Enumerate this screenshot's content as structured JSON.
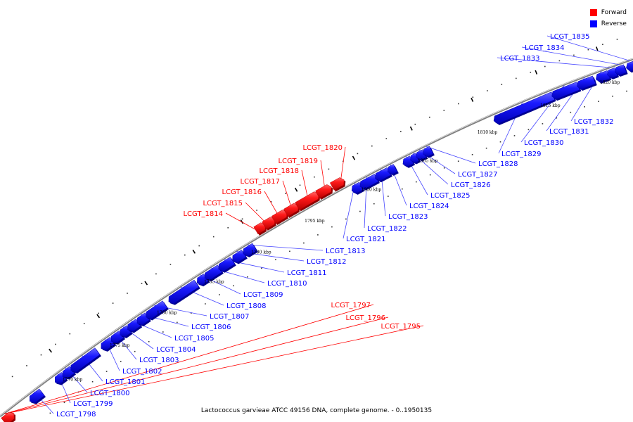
{
  "legend": {
    "forward_label": "Forward",
    "reverse_label": "Reverse",
    "forward_color": "#ff0000",
    "reverse_color": "#0000ff"
  },
  "caption": "Lactococcus garvieae ATCC 49156 DNA, complete genome. - 0..1950135",
  "colors": {
    "forward": "#ff0000",
    "reverse": "#0000ff",
    "backbone": "#808080",
    "leader": "#4444ff",
    "leader_forward": "#ff0000"
  },
  "ticks": [
    "1770 kbp",
    "1775 kbp",
    "1780 kbp",
    "1785 kbp",
    "1790 kbp",
    "1795 kbp",
    "1800 kbp",
    "1805 kbp",
    "1810 kbp",
    "1815 kbp",
    "1820 kbp"
  ],
  "genes": [
    {
      "name": "LCGT_1795",
      "strand": "forward"
    },
    {
      "name": "LCGT_1796",
      "strand": "forward"
    },
    {
      "name": "LCGT_1797",
      "strand": "forward"
    },
    {
      "name": "LCGT_1798",
      "strand": "reverse"
    },
    {
      "name": "LCGT_1799",
      "strand": "reverse"
    },
    {
      "name": "LCGT_1800",
      "strand": "reverse"
    },
    {
      "name": "LCGT_1801",
      "strand": "reverse"
    },
    {
      "name": "LCGT_1802",
      "strand": "reverse"
    },
    {
      "name": "LCGT_1803",
      "strand": "reverse"
    },
    {
      "name": "LCGT_1804",
      "strand": "reverse"
    },
    {
      "name": "LCGT_1805",
      "strand": "reverse"
    },
    {
      "name": "LCGT_1806",
      "strand": "reverse"
    },
    {
      "name": "LCGT_1807",
      "strand": "reverse"
    },
    {
      "name": "LCGT_1808",
      "strand": "reverse"
    },
    {
      "name": "LCGT_1809",
      "strand": "reverse"
    },
    {
      "name": "LCGT_1810",
      "strand": "reverse"
    },
    {
      "name": "LCGT_1811",
      "strand": "reverse"
    },
    {
      "name": "LCGT_1812",
      "strand": "reverse"
    },
    {
      "name": "LCGT_1813",
      "strand": "reverse"
    },
    {
      "name": "LCGT_1814",
      "strand": "forward"
    },
    {
      "name": "LCGT_1815",
      "strand": "forward"
    },
    {
      "name": "LCGT_1816",
      "strand": "forward"
    },
    {
      "name": "LCGT_1817",
      "strand": "forward"
    },
    {
      "name": "LCGT_1818",
      "strand": "forward"
    },
    {
      "name": "LCGT_1819",
      "strand": "forward"
    },
    {
      "name": "LCGT_1820",
      "strand": "forward"
    },
    {
      "name": "LCGT_1821",
      "strand": "reverse"
    },
    {
      "name": "LCGT_1822",
      "strand": "reverse"
    },
    {
      "name": "LCGT_1823",
      "strand": "reverse"
    },
    {
      "name": "LCGT_1824",
      "strand": "reverse"
    },
    {
      "name": "LCGT_1825",
      "strand": "reverse"
    },
    {
      "name": "LCGT_1826",
      "strand": "reverse"
    },
    {
      "name": "LCGT_1827",
      "strand": "reverse"
    },
    {
      "name": "LCGT_1828",
      "strand": "reverse"
    },
    {
      "name": "LCGT_1829",
      "strand": "reverse"
    },
    {
      "name": "LCGT_1830",
      "strand": "reverse"
    },
    {
      "name": "LCGT_1831",
      "strand": "reverse"
    },
    {
      "name": "LCGT_1832",
      "strand": "reverse"
    },
    {
      "name": "LCGT_1833",
      "strand": "reverse"
    },
    {
      "name": "LCGT_1834",
      "strand": "reverse"
    },
    {
      "name": "LCGT_1835",
      "strand": "reverse"
    }
  ]
}
